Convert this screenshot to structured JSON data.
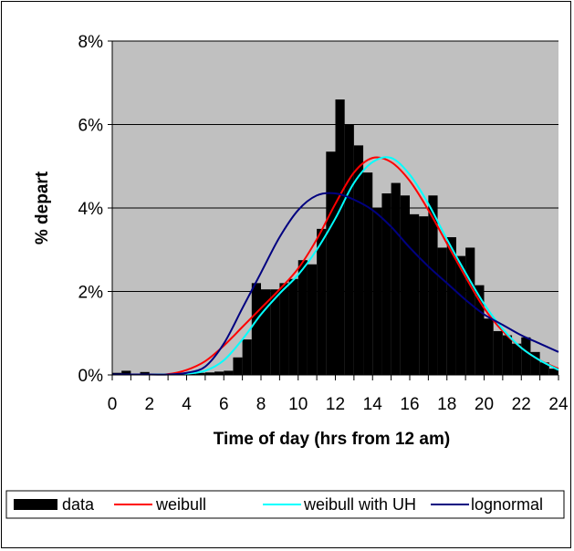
{
  "chart_data": {
    "type": "bar",
    "title": "",
    "xlabel": "Time of day (hrs from 12 am)",
    "ylabel": "% depart",
    "xlim": [
      0,
      24
    ],
    "ylim": [
      0,
      8
    ],
    "x_ticks": [
      0,
      2,
      4,
      6,
      8,
      10,
      12,
      14,
      16,
      18,
      20,
      22,
      24
    ],
    "x_tick_labels": [
      "0",
      "2",
      "4",
      "6",
      "8",
      "10",
      "12",
      "14",
      "16",
      "18",
      "20",
      "22",
      "24"
    ],
    "y_ticks": [
      0,
      2,
      4,
      6,
      8
    ],
    "y_tick_labels": [
      "0%",
      "2%",
      "4%",
      "6%",
      "8%"
    ],
    "grid": "horizontal",
    "plot_background": "#c0c0c0",
    "legend_position": "bottom",
    "bar_series": {
      "name": "data",
      "color": "#000000",
      "bin_width": 0.5,
      "bin_starts": [
        0,
        0.5,
        1,
        1.5,
        2,
        2.5,
        3,
        3.5,
        4,
        4.5,
        5,
        5.5,
        6,
        6.5,
        7,
        7.5,
        8,
        8.5,
        9,
        9.5,
        10,
        10.5,
        11,
        11.5,
        12,
        12.5,
        13,
        13.5,
        14,
        14.5,
        15,
        15.5,
        16,
        16.5,
        17,
        17.5,
        18,
        18.5,
        19,
        19.5,
        20,
        20.5,
        21,
        21.5,
        22,
        22.5,
        23,
        23.5
      ],
      "values": [
        0.05,
        0.1,
        0.02,
        0.07,
        0.02,
        0.02,
        0.02,
        0.02,
        0.04,
        0.05,
        0.06,
        0.08,
        0.1,
        0.42,
        0.85,
        2.2,
        2.05,
        2.05,
        2.2,
        2.3,
        2.75,
        2.65,
        3.5,
        5.35,
        6.6,
        6.0,
        5.5,
        4.85,
        4.0,
        4.35,
        4.6,
        4.3,
        3.85,
        3.8,
        4.3,
        3.05,
        3.3,
        2.85,
        3.05,
        2.15,
        1.35,
        1.05,
        0.95,
        0.75,
        0.9,
        0.55,
        0.3,
        0.15
      ]
    },
    "series": [
      {
        "name": "weibull",
        "color": "#ff0000",
        "x": [
          0,
          2,
          3,
          4,
          5,
          6,
          7,
          8,
          9,
          10,
          11,
          12,
          13,
          14,
          15,
          16,
          17,
          18,
          19,
          20,
          21,
          22,
          23,
          24
        ],
        "values": [
          0,
          0,
          0.02,
          0.12,
          0.33,
          0.7,
          1.15,
          1.6,
          2.05,
          2.55,
          3.25,
          4.1,
          4.85,
          5.2,
          5.1,
          4.65,
          3.95,
          3.15,
          2.35,
          1.6,
          1.05,
          0.65,
          0.35,
          0.15
        ]
      },
      {
        "name": "weibull with UH",
        "color": "#00ffff",
        "x": [
          0,
          2,
          3,
          4,
          5,
          6,
          7,
          8,
          9,
          10,
          11,
          12,
          13,
          14,
          15,
          16,
          17,
          18,
          19,
          20,
          21,
          22,
          23,
          24
        ],
        "values": [
          0,
          0,
          0,
          0.03,
          0.1,
          0.35,
          0.85,
          1.45,
          1.95,
          2.4,
          3.0,
          3.75,
          4.6,
          5.1,
          5.2,
          4.8,
          4.1,
          3.25,
          2.45,
          1.7,
          1.1,
          0.65,
          0.35,
          0.12
        ]
      },
      {
        "name": "lognormal",
        "color": "#000080",
        "x": [
          0,
          2,
          3,
          4,
          5,
          6,
          7,
          8,
          9,
          10,
          11,
          12,
          13,
          14,
          15,
          16,
          17,
          18,
          19,
          20,
          21,
          22,
          23,
          24
        ],
        "values": [
          0,
          0,
          0.01,
          0.05,
          0.2,
          0.75,
          1.6,
          2.45,
          3.3,
          3.95,
          4.3,
          4.35,
          4.2,
          3.95,
          3.55,
          3.05,
          2.6,
          2.2,
          1.8,
          1.45,
          1.2,
          0.95,
          0.75,
          0.55
        ]
      }
    ]
  }
}
